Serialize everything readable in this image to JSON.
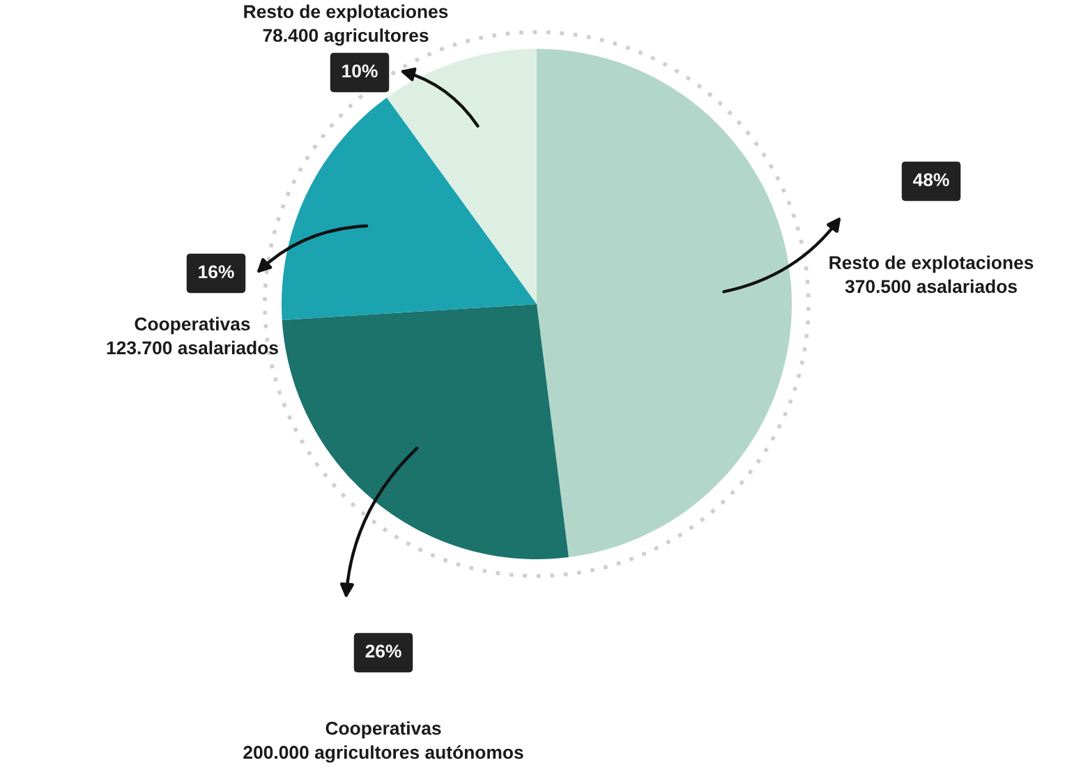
{
  "chart_data": {
    "type": "pie",
    "categories": [
      "Resto de explotaciones\n370.500 asalariados",
      "Cooperativas\n200.000 agricultores autónomos",
      "Cooperativas\n123.700 asalariados",
      "Resto de explotaciones\n78.400 agricultores"
    ],
    "values": [
      48,
      26,
      16,
      10
    ],
    "value_labels": [
      "48%",
      "26%",
      "16%",
      "10%"
    ],
    "colors": [
      "#b3d6cb",
      "#1b736c",
      "#1ba3b0",
      "#ddefe3"
    ]
  }
}
